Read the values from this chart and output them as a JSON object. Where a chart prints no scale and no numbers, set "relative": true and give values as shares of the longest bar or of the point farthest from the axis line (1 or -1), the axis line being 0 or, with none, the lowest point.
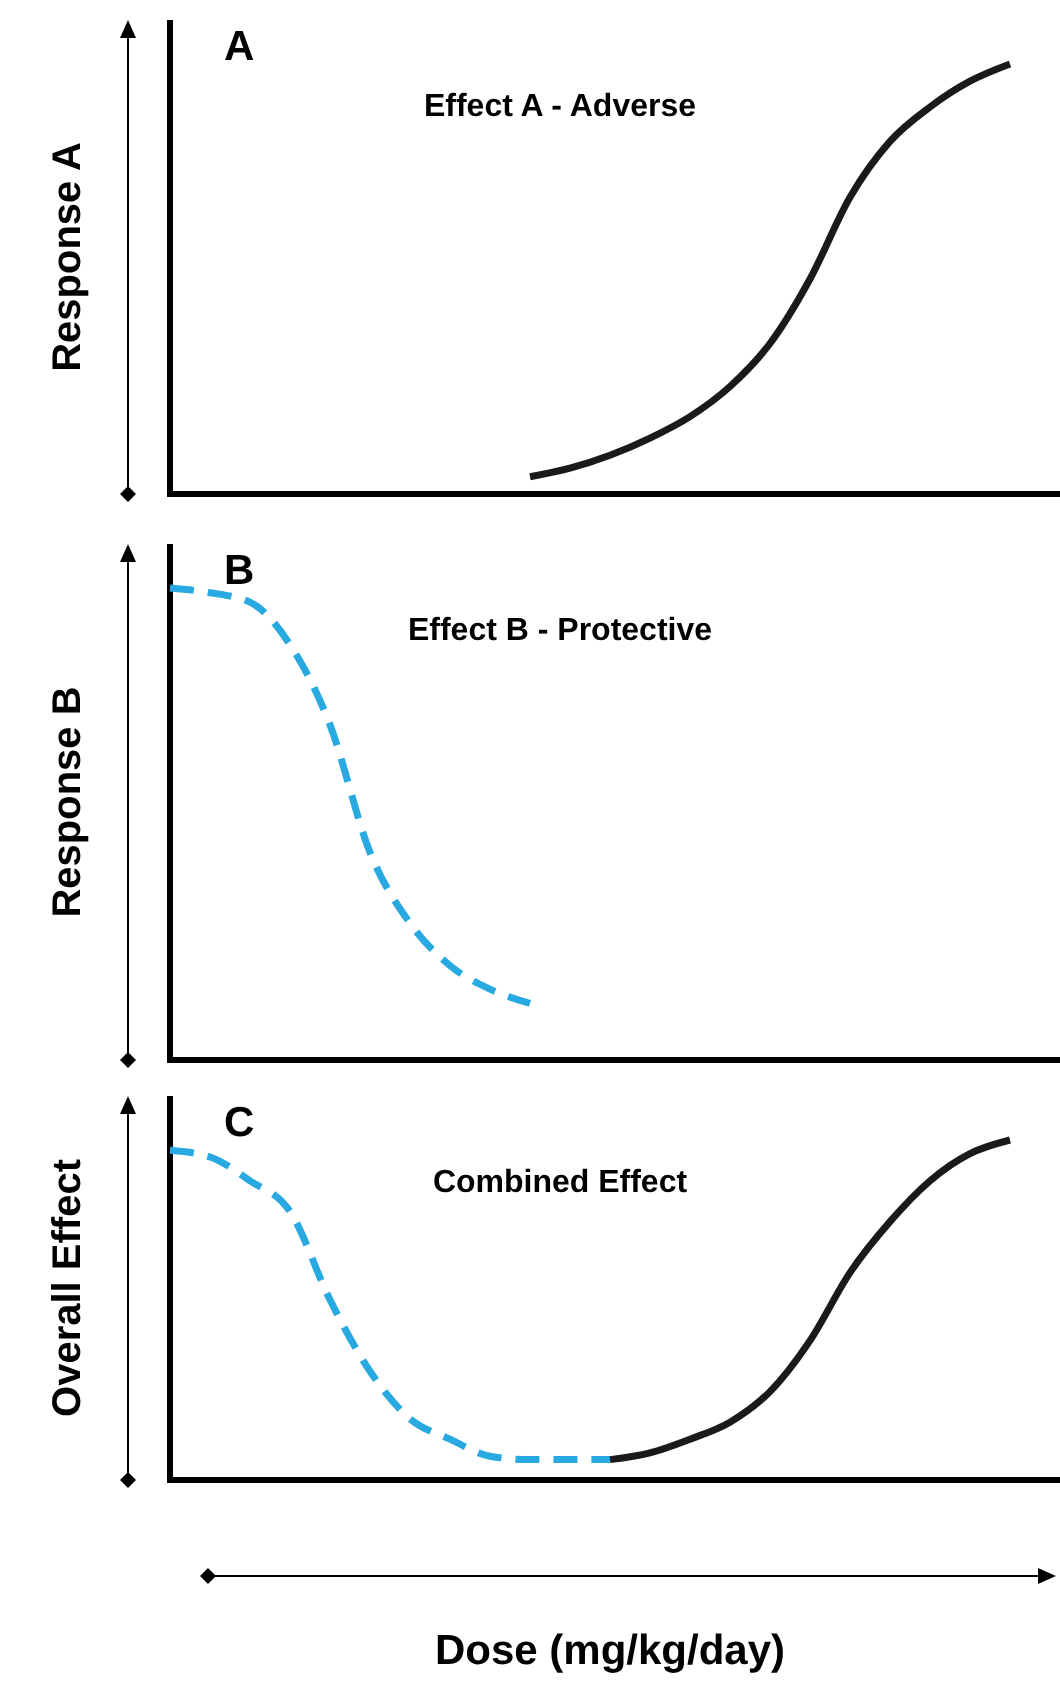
{
  "chart_data": [
    {
      "type": "line",
      "title": "Effect A - Adverse",
      "annotations": [
        "A"
      ],
      "ylabel": "Response A",
      "relative": true,
      "categories": [
        null,
        null,
        null,
        null,
        null,
        null,
        null,
        null,
        null,
        null,
        null,
        null,
        null,
        null,
        null,
        null,
        null,
        null,
        null,
        null,
        null,
        null
      ],
      "series": [
        {
          "color": "#1a1a1a",
          "line_style": "solid",
          "values": [
            null,
            null,
            null,
            null,
            null,
            null,
            null,
            null,
            null,
            0.04,
            0.06,
            0.09,
            0.13,
            0.18,
            0.25,
            0.35,
            0.5,
            0.69,
            0.82,
            0.9,
            0.96,
            1.0
          ]
        }
      ]
    },
    {
      "type": "line",
      "title": "Effect B - Protective",
      "annotations": [
        "B"
      ],
      "ylabel": "Response B",
      "relative": true,
      "categories": [
        null,
        null,
        null,
        null,
        null,
        null,
        null,
        null,
        null,
        null,
        null,
        null,
        null,
        null,
        null,
        null,
        null,
        null,
        null,
        null,
        null,
        null
      ],
      "series": [
        {
          "color": "#29a9e1",
          "line_style": "dashed",
          "values": [
            1.0,
            0.99,
            0.97,
            0.88,
            0.71,
            0.44,
            0.29,
            0.2,
            0.15,
            0.12,
            null,
            null,
            null,
            null,
            null,
            null,
            null,
            null,
            null,
            null,
            null,
            null
          ]
        }
      ]
    },
    {
      "type": "line",
      "title": "Combined Effect",
      "annotations": [
        "C"
      ],
      "ylabel": "Overall Effect",
      "xlabel": "Dose (mg/kg/day)",
      "relative": true,
      "categories": [
        null,
        null,
        null,
        null,
        null,
        null,
        null,
        null,
        null,
        null,
        null,
        null,
        null,
        null,
        null,
        null,
        null,
        null,
        null,
        null,
        null,
        null
      ],
      "series": [
        {
          "color": "#29a9e1",
          "line_style": "dashed",
          "values": [
            0.97,
            0.95,
            0.88,
            0.79,
            0.53,
            0.32,
            0.18,
            0.12,
            0.07,
            0.06,
            0.06,
            0.06,
            null,
            null,
            null,
            null,
            null,
            null,
            null,
            null,
            null,
            null
          ]
        },
        {
          "color": "#1a1a1a",
          "line_style": "solid",
          "values": [
            null,
            null,
            null,
            null,
            null,
            null,
            null,
            null,
            null,
            null,
            null,
            0.06,
            0.08,
            0.12,
            0.17,
            0.26,
            0.41,
            0.61,
            0.76,
            0.88,
            0.96,
            1.0
          ]
        }
      ]
    }
  ]
}
